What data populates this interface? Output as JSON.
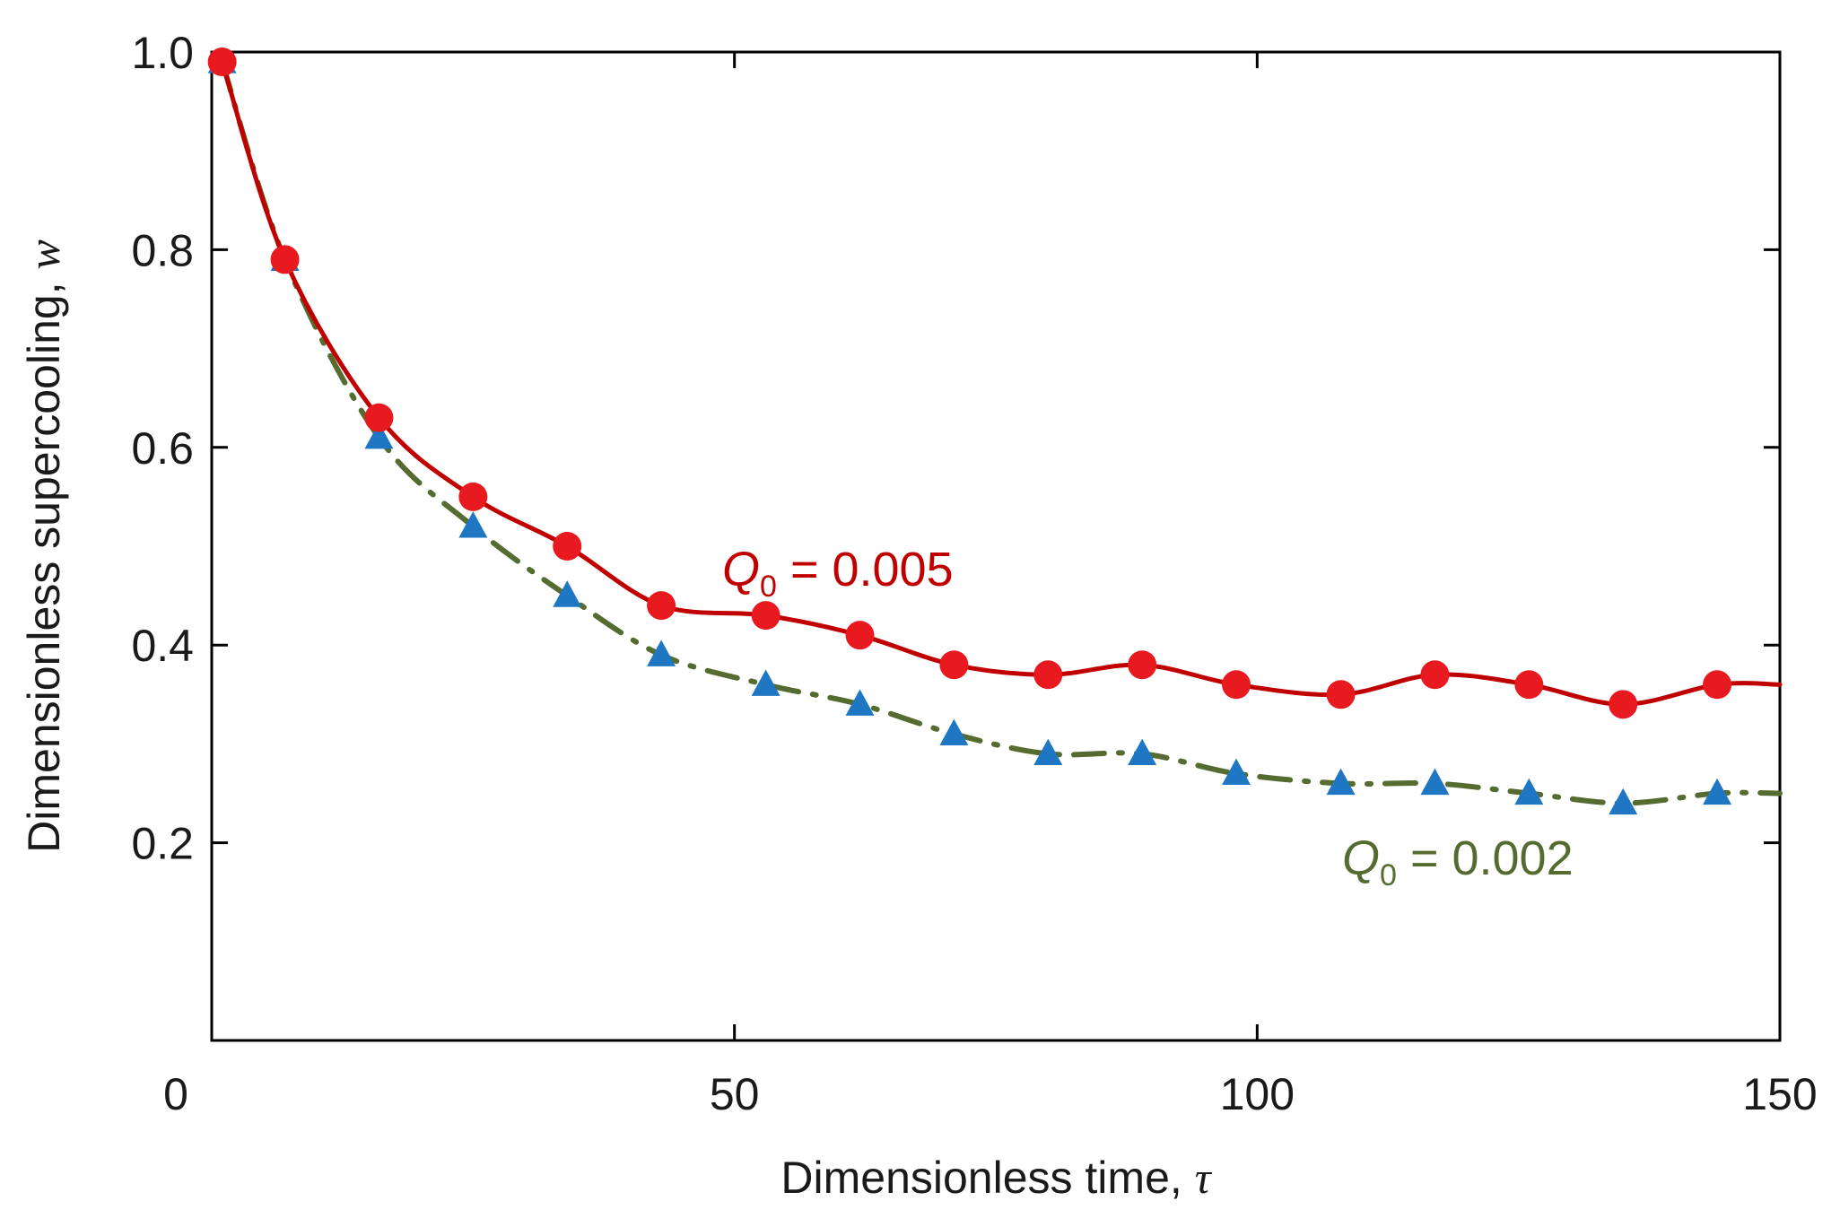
{
  "chart_data": {
    "type": "line",
    "title": "",
    "xlabel": "Dimensionless time,",
    "xlabel_symbol": "τ",
    "ylabel": "Dimensionless supercooling,",
    "ylabel_symbol": "w",
    "xlim": [
      0,
      150
    ],
    "ylim": [
      0,
      1.0
    ],
    "xticks": [
      0,
      50,
      100,
      150
    ],
    "xtick_labels": [
      "0",
      "50",
      "100",
      "150"
    ],
    "yticks": [
      0.2,
      0.4,
      0.6,
      0.8,
      1.0
    ],
    "ytick_labels": [
      "0.2",
      "0.4",
      "0.6",
      "0.8",
      "1.0"
    ],
    "grid": false,
    "series": [
      {
        "name": "Q0 = 0.005",
        "label_main": "Q",
        "label_sub": "0",
        "label_rest": " = 0.005",
        "color": "#c00000",
        "marker_color": "#e8191f",
        "marker": "circle",
        "line_style": "solid",
        "x": [
          1,
          7,
          16,
          25,
          34,
          43,
          53,
          62,
          71,
          80,
          89,
          98,
          108,
          117,
          126,
          135,
          144,
          150
        ],
        "y": [
          0.99,
          0.79,
          0.63,
          0.55,
          0.5,
          0.44,
          0.43,
          0.41,
          0.38,
          0.37,
          0.38,
          0.36,
          0.35,
          0.37,
          0.36,
          0.34,
          0.36,
          0.36
        ]
      },
      {
        "name": "Q0 = 0.002",
        "label_main": "Q",
        "label_sub": "0",
        "label_rest": " = 0.002",
        "color": "#556b2f",
        "marker_color": "#1f77c4",
        "marker": "triangle",
        "line_style": "dashdot",
        "x": [
          1,
          7,
          16,
          25,
          34,
          43,
          53,
          62,
          71,
          80,
          89,
          98,
          108,
          117,
          126,
          135,
          144,
          150
        ],
        "y": [
          0.99,
          0.79,
          0.61,
          0.52,
          0.45,
          0.39,
          0.36,
          0.34,
          0.31,
          0.29,
          0.29,
          0.27,
          0.26,
          0.26,
          0.25,
          0.24,
          0.25,
          0.25
        ]
      }
    ],
    "annotations": [
      {
        "series": 0,
        "position": "above curve near x=50"
      },
      {
        "series": 1,
        "position": "below curve near x=120"
      }
    ]
  }
}
